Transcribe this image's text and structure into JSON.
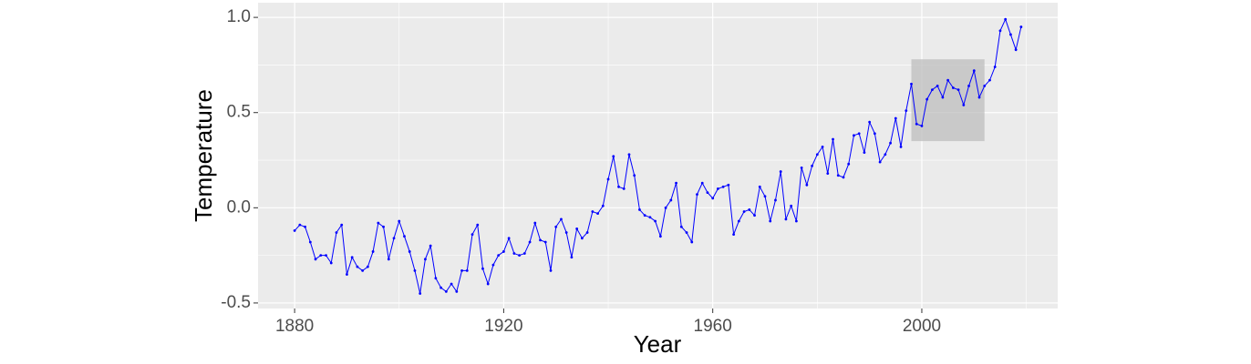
{
  "chart_data": {
    "type": "line",
    "x_label": "Year",
    "y_label": "Temperature",
    "x": [
      1880,
      1881,
      1882,
      1883,
      1884,
      1885,
      1886,
      1887,
      1888,
      1889,
      1890,
      1891,
      1892,
      1893,
      1894,
      1895,
      1896,
      1897,
      1898,
      1899,
      1900,
      1901,
      1902,
      1903,
      1904,
      1905,
      1906,
      1907,
      1908,
      1909,
      1910,
      1911,
      1912,
      1913,
      1914,
      1915,
      1916,
      1917,
      1918,
      1919,
      1920,
      1921,
      1922,
      1923,
      1924,
      1925,
      1926,
      1927,
      1928,
      1929,
      1930,
      1931,
      1932,
      1933,
      1934,
      1935,
      1936,
      1937,
      1938,
      1939,
      1940,
      1941,
      1942,
      1943,
      1944,
      1945,
      1946,
      1947,
      1948,
      1949,
      1950,
      1951,
      1952,
      1953,
      1954,
      1955,
      1956,
      1957,
      1958,
      1959,
      1960,
      1961,
      1962,
      1963,
      1964,
      1965,
      1966,
      1967,
      1968,
      1969,
      1970,
      1971,
      1972,
      1973,
      1974,
      1975,
      1976,
      1977,
      1978,
      1979,
      1980,
      1981,
      1982,
      1983,
      1984,
      1985,
      1986,
      1987,
      1988,
      1989,
      1990,
      1991,
      1992,
      1993,
      1994,
      1995,
      1996,
      1997,
      1998,
      1999,
      2000,
      2001,
      2002,
      2003,
      2004,
      2005,
      2006,
      2007,
      2008,
      2009,
      2010,
      2011,
      2012,
      2013,
      2014,
      2015,
      2016,
      2017,
      2018,
      2019
    ],
    "values": [
      -0.12,
      -0.09,
      -0.1,
      -0.18,
      -0.27,
      -0.25,
      -0.25,
      -0.29,
      -0.13,
      -0.09,
      -0.35,
      -0.26,
      -0.31,
      -0.33,
      -0.31,
      -0.23,
      -0.08,
      -0.1,
      -0.27,
      -0.16,
      -0.07,
      -0.15,
      -0.23,
      -0.33,
      -0.45,
      -0.27,
      -0.2,
      -0.37,
      -0.42,
      -0.44,
      -0.4,
      -0.44,
      -0.33,
      -0.33,
      -0.14,
      -0.09,
      -0.32,
      -0.4,
      -0.3,
      -0.25,
      -0.23,
      -0.16,
      -0.24,
      -0.25,
      -0.24,
      -0.18,
      -0.08,
      -0.17,
      -0.18,
      -0.33,
      -0.1,
      -0.06,
      -0.13,
      -0.26,
      -0.11,
      -0.16,
      -0.13,
      -0.02,
      -0.03,
      0.01,
      0.15,
      0.27,
      0.11,
      0.1,
      0.28,
      0.17,
      -0.01,
      -0.04,
      -0.05,
      -0.07,
      -0.15,
      0.0,
      0.04,
      0.13,
      -0.1,
      -0.13,
      -0.18,
      0.07,
      0.13,
      0.08,
      0.05,
      0.1,
      0.11,
      0.12,
      -0.14,
      -0.07,
      -0.02,
      -0.01,
      -0.04,
      0.11,
      0.06,
      -0.07,
      0.04,
      0.19,
      -0.06,
      0.01,
      -0.07,
      0.21,
      0.12,
      0.22,
      0.28,
      0.32,
      0.18,
      0.36,
      0.17,
      0.16,
      0.23,
      0.38,
      0.39,
      0.29,
      0.45,
      0.39,
      0.24,
      0.28,
      0.34,
      0.47,
      0.32,
      0.51,
      0.65,
      0.44,
      0.43,
      0.57,
      0.62,
      0.64,
      0.58,
      0.67,
      0.63,
      0.62,
      0.54,
      0.64,
      0.72,
      0.58,
      0.64,
      0.67,
      0.74,
      0.93,
      0.99,
      0.91,
      0.83,
      0.95
    ],
    "color": "#0000ff",
    "highlight": {
      "xmin": 1998,
      "xmax": 2012,
      "ymin": 0.35,
      "ymax": 0.78,
      "color": "#bdbdbd"
    },
    "xlim": [
      1873,
      2026
    ],
    "ylim": [
      -0.529,
      1.077
    ],
    "xticks": [
      1880,
      1920,
      1960,
      2000
    ],
    "yticks": [
      {
        "value": -0.5,
        "label": "-0.5"
      },
      {
        "value": 0,
        "label": "0.0"
      },
      {
        "value": 0.5,
        "label": "0.5"
      },
      {
        "value": 1,
        "label": "1.0"
      }
    ],
    "grid": true
  }
}
